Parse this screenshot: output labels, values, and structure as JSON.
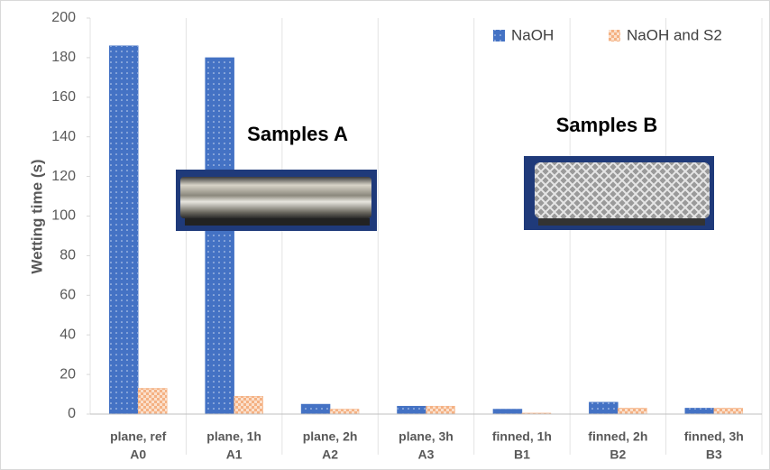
{
  "chart_data": {
    "type": "bar",
    "y_label": "Wetting time (s)",
    "categories": [
      [
        "plane, ref",
        "A0"
      ],
      [
        "plane, 1h",
        "A1"
      ],
      [
        "plane, 2h",
        "A2"
      ],
      [
        "plane, 3h",
        "A3"
      ],
      [
        "finned, 1h",
        "B1"
      ],
      [
        "finned, 2h",
        "B2"
      ],
      [
        "finned, 3h",
        "B3"
      ]
    ],
    "series": [
      {
        "name": "NaOH",
        "color": "#4472c4",
        "values": [
          186,
          180,
          5,
          4,
          2.5,
          6,
          3
        ]
      },
      {
        "name": "NaOH and S2",
        "color": "#f4b183",
        "values": [
          13,
          9,
          2.5,
          4,
          0.5,
          3,
          3
        ]
      }
    ],
    "ylim": [
      0,
      200
    ],
    "yticks": [
      0,
      20,
      40,
      60,
      80,
      100,
      120,
      140,
      160,
      180,
      200
    ],
    "legend": "upper right",
    "annotations": [
      "Samples A",
      "Samples B"
    ]
  }
}
